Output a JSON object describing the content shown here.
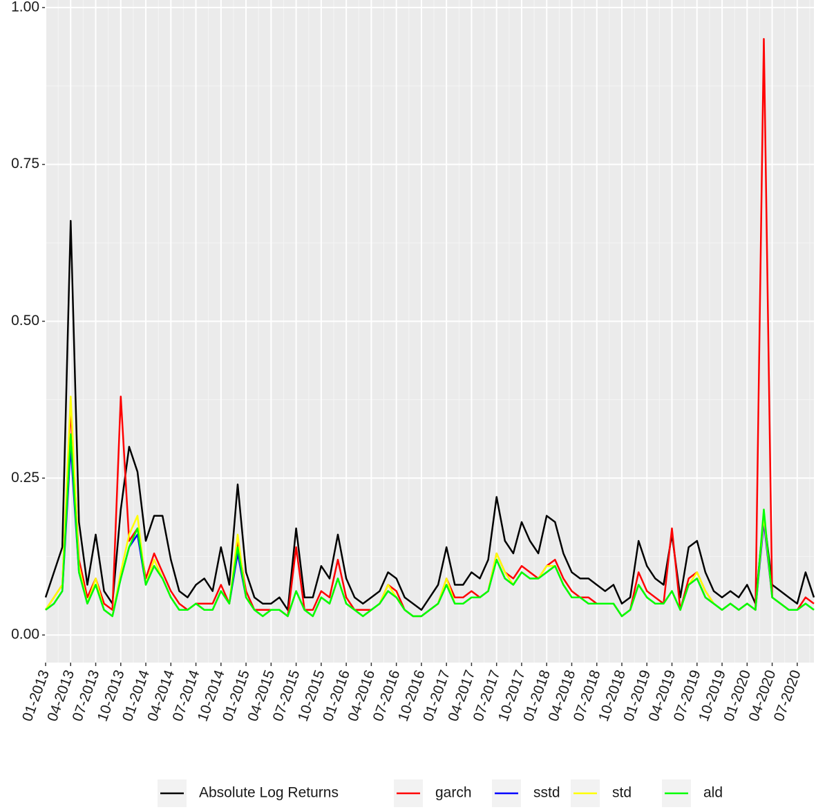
{
  "chart_data": {
    "type": "line",
    "x": [
      "2013-01",
      "2013-02",
      "2013-03",
      "2013-04",
      "2013-05",
      "2013-06",
      "2013-07",
      "2013-08",
      "2013-09",
      "2013-10",
      "2013-11",
      "2013-12",
      "2014-01",
      "2014-02",
      "2014-03",
      "2014-04",
      "2014-05",
      "2014-06",
      "2014-07",
      "2014-08",
      "2014-09",
      "2014-10",
      "2014-11",
      "2014-12",
      "2015-01",
      "2015-02",
      "2015-03",
      "2015-04",
      "2015-05",
      "2015-06",
      "2015-07",
      "2015-08",
      "2015-09",
      "2015-10",
      "2015-11",
      "2015-12",
      "2016-01",
      "2016-02",
      "2016-03",
      "2016-04",
      "2016-05",
      "2016-06",
      "2016-07",
      "2016-08",
      "2016-09",
      "2016-10",
      "2016-11",
      "2016-12",
      "2017-01",
      "2017-02",
      "2017-03",
      "2017-04",
      "2017-05",
      "2017-06",
      "2017-07",
      "2017-08",
      "2017-09",
      "2017-10",
      "2017-11",
      "2017-12",
      "2018-01",
      "2018-02",
      "2018-03",
      "2018-04",
      "2018-05",
      "2018-06",
      "2018-07",
      "2018-08",
      "2018-09",
      "2018-10",
      "2018-11",
      "2018-12",
      "2019-01",
      "2019-02",
      "2019-03",
      "2019-04",
      "2019-05",
      "2019-06",
      "2019-07",
      "2019-08",
      "2019-09",
      "2019-10",
      "2019-11",
      "2019-12",
      "2020-01",
      "2020-02",
      "2020-03",
      "2020-04",
      "2020-05",
      "2020-06",
      "2020-07",
      "2020-08",
      "2020-09"
    ],
    "series": [
      {
        "name": "Absolute Log Returns",
        "color": "#000000",
        "values": [
          0.06,
          0.1,
          0.14,
          0.66,
          0.18,
          0.08,
          0.16,
          0.07,
          0.05,
          0.2,
          0.3,
          0.26,
          0.15,
          0.19,
          0.19,
          0.12,
          0.07,
          0.06,
          0.08,
          0.09,
          0.07,
          0.14,
          0.08,
          0.24,
          0.1,
          0.06,
          0.05,
          0.05,
          0.06,
          0.04,
          0.17,
          0.06,
          0.06,
          0.11,
          0.09,
          0.16,
          0.09,
          0.06,
          0.05,
          0.06,
          0.07,
          0.1,
          0.09,
          0.06,
          0.05,
          0.04,
          0.06,
          0.08,
          0.14,
          0.08,
          0.08,
          0.1,
          0.09,
          0.12,
          0.22,
          0.15,
          0.13,
          0.18,
          0.15,
          0.13,
          0.19,
          0.18,
          0.13,
          0.1,
          0.09,
          0.09,
          0.08,
          0.07,
          0.08,
          0.05,
          0.06,
          0.15,
          0.11,
          0.09,
          0.08,
          0.16,
          0.06,
          0.14,
          0.15,
          0.1,
          0.07,
          0.06,
          0.07,
          0.06,
          0.08,
          0.05,
          0.19,
          0.08,
          0.07,
          0.06,
          0.05,
          0.1,
          0.06
        ]
      },
      {
        "name": "garch",
        "color": "#ff0000",
        "values": [
          0.04,
          0.06,
          0.08,
          0.36,
          0.12,
          0.06,
          0.09,
          0.05,
          0.04,
          0.38,
          0.15,
          0.17,
          0.09,
          0.13,
          0.1,
          0.07,
          0.05,
          0.04,
          0.05,
          0.05,
          0.05,
          0.08,
          0.05,
          0.15,
          0.07,
          0.04,
          0.04,
          0.04,
          0.04,
          0.03,
          0.14,
          0.04,
          0.04,
          0.07,
          0.06,
          0.12,
          0.06,
          0.04,
          0.04,
          0.04,
          0.05,
          0.08,
          0.07,
          0.04,
          0.03,
          0.03,
          0.04,
          0.05,
          0.09,
          0.06,
          0.06,
          0.07,
          0.06,
          0.07,
          0.13,
          0.1,
          0.09,
          0.11,
          0.1,
          0.09,
          0.11,
          0.12,
          0.09,
          0.07,
          0.06,
          0.06,
          0.05,
          0.05,
          0.05,
          0.03,
          0.04,
          0.1,
          0.07,
          0.06,
          0.05,
          0.17,
          0.04,
          0.09,
          0.1,
          0.07,
          0.05,
          0.04,
          0.05,
          0.04,
          0.05,
          0.04,
          0.95,
          0.06,
          0.05,
          0.04,
          0.04,
          0.06,
          0.05
        ]
      },
      {
        "name": "sstd",
        "color": "#0000ff",
        "values": [
          0.04,
          0.05,
          0.07,
          0.3,
          0.1,
          0.05,
          0.08,
          0.04,
          0.03,
          0.09,
          0.14,
          0.16,
          0.08,
          0.11,
          0.09,
          0.06,
          0.04,
          0.04,
          0.05,
          0.04,
          0.04,
          0.07,
          0.05,
          0.13,
          0.06,
          0.04,
          0.03,
          0.04,
          0.04,
          0.03,
          0.07,
          0.04,
          0.03,
          0.06,
          0.05,
          0.09,
          0.05,
          0.04,
          0.03,
          0.04,
          0.05,
          0.07,
          0.06,
          0.04,
          0.03,
          0.03,
          0.04,
          0.05,
          0.08,
          0.05,
          0.05,
          0.06,
          0.06,
          0.07,
          0.12,
          0.09,
          0.08,
          0.1,
          0.09,
          0.09,
          0.1,
          0.11,
          0.08,
          0.06,
          0.06,
          0.05,
          0.05,
          0.05,
          0.05,
          0.03,
          0.04,
          0.08,
          0.06,
          0.05,
          0.05,
          0.07,
          0.04,
          0.08,
          0.09,
          0.06,
          0.05,
          0.04,
          0.05,
          0.04,
          0.05,
          0.04,
          0.18,
          0.06,
          0.05,
          0.04,
          0.04,
          0.05,
          0.04
        ]
      },
      {
        "name": "std",
        "color": "#ffff00",
        "values": [
          0.04,
          0.06,
          0.08,
          0.38,
          0.11,
          0.05,
          0.09,
          0.04,
          0.03,
          0.1,
          0.16,
          0.19,
          0.08,
          0.12,
          0.09,
          0.06,
          0.04,
          0.04,
          0.05,
          0.04,
          0.04,
          0.07,
          0.05,
          0.16,
          0.06,
          0.04,
          0.03,
          0.04,
          0.04,
          0.03,
          0.07,
          0.04,
          0.03,
          0.06,
          0.05,
          0.09,
          0.05,
          0.04,
          0.03,
          0.04,
          0.05,
          0.08,
          0.06,
          0.04,
          0.03,
          0.03,
          0.04,
          0.05,
          0.09,
          0.05,
          0.05,
          0.06,
          0.06,
          0.07,
          0.13,
          0.1,
          0.08,
          0.1,
          0.09,
          0.09,
          0.11,
          0.11,
          0.08,
          0.06,
          0.06,
          0.05,
          0.05,
          0.05,
          0.05,
          0.03,
          0.04,
          0.08,
          0.06,
          0.05,
          0.05,
          0.07,
          0.04,
          0.08,
          0.1,
          0.07,
          0.05,
          0.04,
          0.05,
          0.04,
          0.05,
          0.04,
          0.19,
          0.06,
          0.05,
          0.04,
          0.04,
          0.05,
          0.04
        ]
      },
      {
        "name": "ald",
        "color": "#00ff00",
        "values": [
          0.04,
          0.05,
          0.07,
          0.32,
          0.1,
          0.05,
          0.08,
          0.04,
          0.03,
          0.09,
          0.14,
          0.17,
          0.08,
          0.11,
          0.09,
          0.06,
          0.04,
          0.04,
          0.05,
          0.04,
          0.04,
          0.07,
          0.05,
          0.14,
          0.06,
          0.04,
          0.03,
          0.04,
          0.04,
          0.03,
          0.07,
          0.04,
          0.03,
          0.06,
          0.05,
          0.09,
          0.05,
          0.04,
          0.03,
          0.04,
          0.05,
          0.07,
          0.06,
          0.04,
          0.03,
          0.03,
          0.04,
          0.05,
          0.08,
          0.05,
          0.05,
          0.06,
          0.06,
          0.07,
          0.12,
          0.09,
          0.08,
          0.1,
          0.09,
          0.09,
          0.1,
          0.11,
          0.08,
          0.06,
          0.06,
          0.05,
          0.05,
          0.05,
          0.05,
          0.03,
          0.04,
          0.08,
          0.06,
          0.05,
          0.05,
          0.07,
          0.04,
          0.08,
          0.09,
          0.06,
          0.05,
          0.04,
          0.05,
          0.04,
          0.05,
          0.04,
          0.2,
          0.06,
          0.05,
          0.04,
          0.04,
          0.05,
          0.04
        ]
      }
    ],
    "xlim": [
      "2013-01",
      "2020-09"
    ],
    "xticks": [
      {
        "value": "2013-01",
        "label": "01-2013"
      },
      {
        "value": "2013-04",
        "label": "04-2013"
      },
      {
        "value": "2013-07",
        "label": "07-2013"
      },
      {
        "value": "2013-10",
        "label": "10-2013"
      },
      {
        "value": "2014-01",
        "label": "01-2014"
      },
      {
        "value": "2014-04",
        "label": "04-2014"
      },
      {
        "value": "2014-07",
        "label": "07-2014"
      },
      {
        "value": "2014-10",
        "label": "10-2014"
      },
      {
        "value": "2015-01",
        "label": "01-2015"
      },
      {
        "value": "2015-04",
        "label": "04-2015"
      },
      {
        "value": "2015-07",
        "label": "07-2015"
      },
      {
        "value": "2015-10",
        "label": "10-2015"
      },
      {
        "value": "2016-01",
        "label": "01-2016"
      },
      {
        "value": "2016-04",
        "label": "04-2016"
      },
      {
        "value": "2016-07",
        "label": "07-2016"
      },
      {
        "value": "2016-10",
        "label": "10-2016"
      },
      {
        "value": "2017-01",
        "label": "01-2017"
      },
      {
        "value": "2017-04",
        "label": "04-2017"
      },
      {
        "value": "2017-07",
        "label": "07-2017"
      },
      {
        "value": "2017-10",
        "label": "10-2017"
      },
      {
        "value": "2018-01",
        "label": "01-2018"
      },
      {
        "value": "2018-04",
        "label": "04-2018"
      },
      {
        "value": "2018-07",
        "label": "07-2018"
      },
      {
        "value": "2018-10",
        "label": "10-2018"
      },
      {
        "value": "2019-01",
        "label": "01-2019"
      },
      {
        "value": "2019-04",
        "label": "04-2019"
      },
      {
        "value": "2019-07",
        "label": "07-2019"
      },
      {
        "value": "2019-10",
        "label": "10-2019"
      },
      {
        "value": "2020-01",
        "label": "01-2020"
      },
      {
        "value": "2020-04",
        "label": "04-2020"
      },
      {
        "value": "2020-07",
        "label": "07-2020"
      }
    ],
    "ylim": [
      -0.044,
      1.012
    ],
    "yticks": [
      {
        "value": 0,
        "label": "0.00"
      },
      {
        "value": 0.25,
        "label": "0.25"
      },
      {
        "value": 0.5,
        "label": "0.50"
      },
      {
        "value": 0.75,
        "label": "0.75"
      },
      {
        "value": 1,
        "label": "1.00"
      }
    ],
    "grid": true,
    "legend": "bottom"
  }
}
